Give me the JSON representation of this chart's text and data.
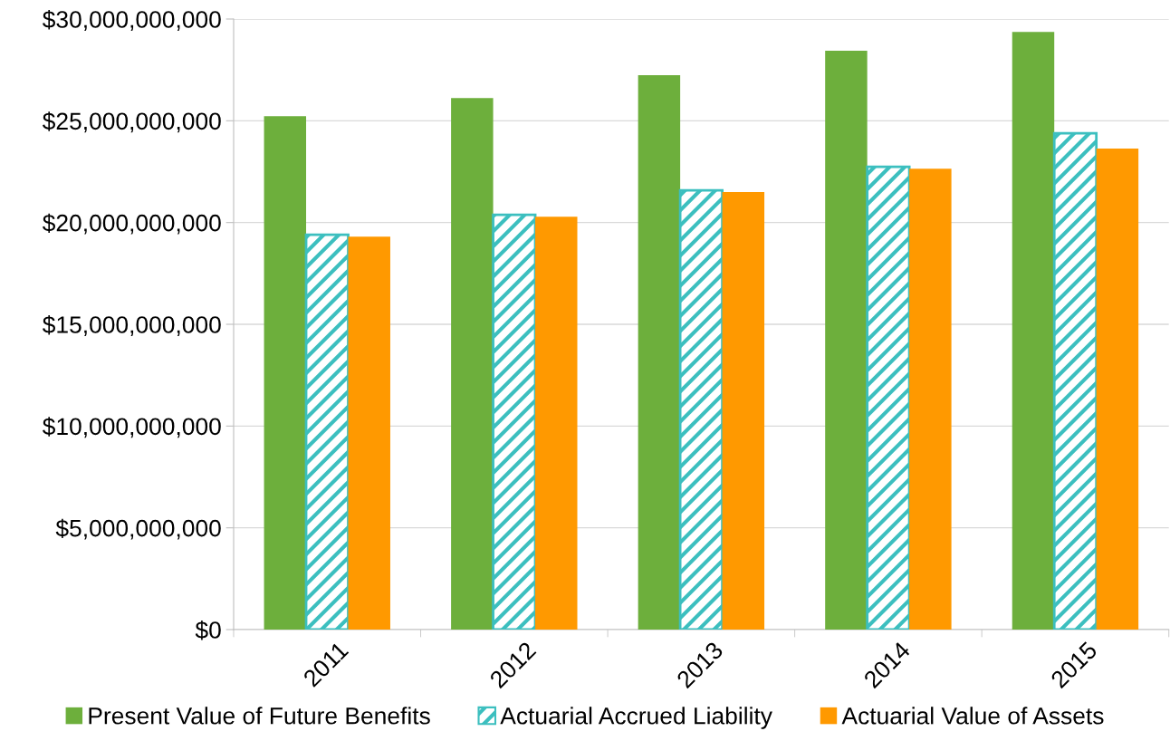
{
  "chart_data": {
    "type": "bar",
    "categories": [
      "2011",
      "2012",
      "2013",
      "2014",
      "2015"
    ],
    "series": [
      {
        "name": "Present Value of Future Benefits",
        "color": "#6daf3c",
        "values": [
          25230000000,
          26120000000,
          27240000000,
          28440000000,
          29370000000
        ]
      },
      {
        "name": "Actuarial Accrued Liability",
        "color": "#3cbfbf",
        "values": [
          19400000000,
          20380000000,
          21580000000,
          22740000000,
          24390000000
        ]
      },
      {
        "name": "Actuarial Value of Assets",
        "color": "#ff9900",
        "values": [
          19310000000,
          20290000000,
          21500000000,
          22650000000,
          23630000000
        ]
      }
    ],
    "ylim": [
      0,
      30000000000
    ],
    "yticks": [
      {
        "value": 0,
        "label": "$0"
      },
      {
        "value": 5000000000,
        "label": "$5,000,000,000"
      },
      {
        "value": 10000000000,
        "label": "$10,000,000,000"
      },
      {
        "value": 15000000000,
        "label": "$15,000,000,000"
      },
      {
        "value": 20000000000,
        "label": "$20,000,000,000"
      },
      {
        "value": 25000000000,
        "label": "$25,000,000,000"
      },
      {
        "value": 30000000000,
        "label": "$30,000,000,000"
      }
    ],
    "grid": "y",
    "legend": "bottom"
  }
}
